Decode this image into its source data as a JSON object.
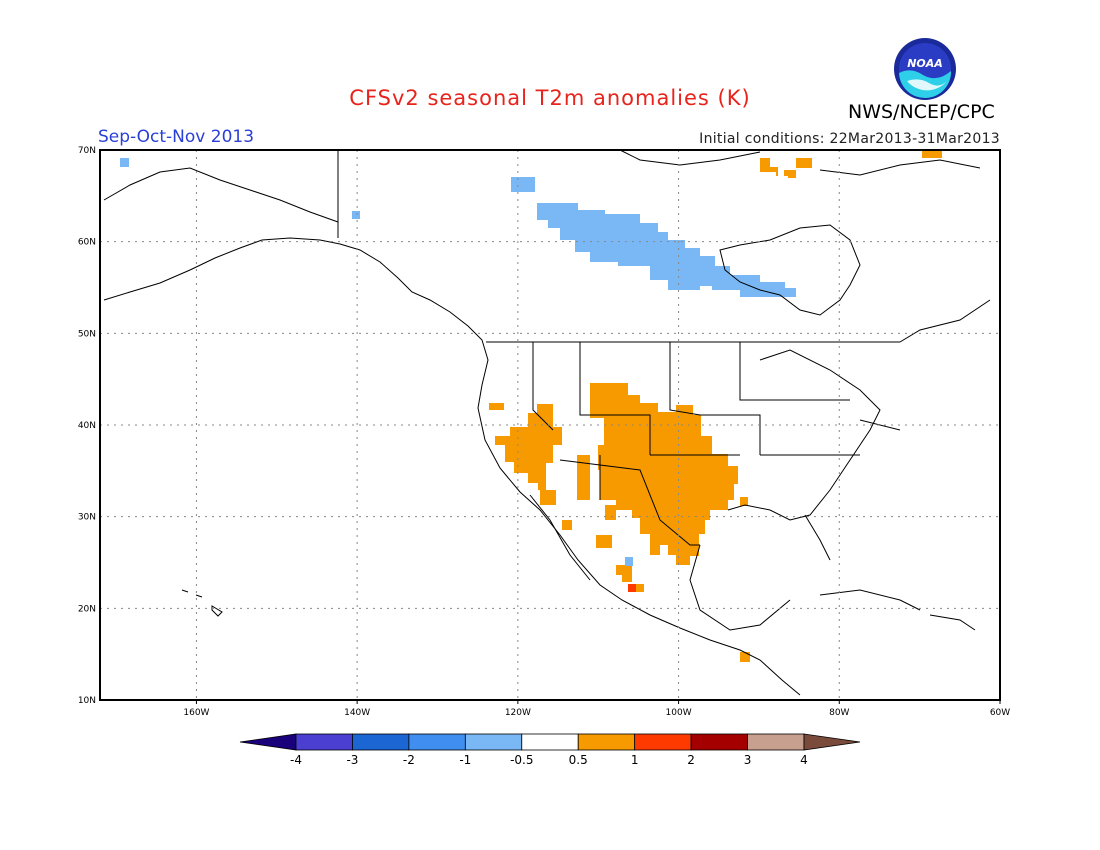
{
  "title": "CFSv2 seasonal T2m anomalies (K)",
  "org": "NWS/NCEP/CPC",
  "period": "Sep-Oct-Nov 2013",
  "initial_conditions": "Initial conditions: 22Mar2013-31Mar2013",
  "logo_text": "NOAA",
  "map": {
    "lon_range": [
      -172,
      -60
    ],
    "lat_range": [
      10,
      70
    ],
    "lon_ticks": [
      {
        "value": -160,
        "label": "160W"
      },
      {
        "value": -140,
        "label": "140W"
      },
      {
        "value": -120,
        "label": "120W"
      },
      {
        "value": -100,
        "label": "100W"
      },
      {
        "value": -80,
        "label": "80W"
      },
      {
        "value": -60,
        "label": "60W"
      }
    ],
    "lat_ticks": [
      {
        "value": 70,
        "label": "70N"
      },
      {
        "value": 60,
        "label": "60N"
      },
      {
        "value": 50,
        "label": "50N"
      },
      {
        "value": 40,
        "label": "40N"
      },
      {
        "value": 30,
        "label": "30N"
      },
      {
        "value": 20,
        "label": "20N"
      },
      {
        "value": 10,
        "label": "10N"
      }
    ],
    "grid": true
  },
  "colorbar": {
    "labels": [
      "-4",
      "-3",
      "-2",
      "-1",
      "-0.5",
      "0.5",
      "1",
      "2",
      "3",
      "4"
    ],
    "colors": [
      "#1a007a",
      "#4a3fd0",
      "#1c66d4",
      "#3f8ef0",
      "#7ab8f5",
      "#ffffff",
      "#f79a00",
      "#ff3a00",
      "#a50000",
      "#c8a090",
      "#7a4a3a"
    ]
  },
  "chart_data": {
    "type": "heatmap",
    "title": "CFSv2 seasonal T2m anomalies (K)",
    "units": "K",
    "regions": [
      {
        "name": "",
        "anomaly_class": "0.5 to 1",
        "lon": [
          -121,
          -111
        ],
        "lat": [
          29,
          38
        ]
      },
      {
        "name": "",
        "anomaly_class": "0.5 to 1",
        "lon": [
          -111,
          -94
        ],
        "lat": [
          27,
          42
        ]
      },
      {
        "name": "",
        "anomaly_class": "0.5 to 1",
        "lon": [
          -110,
          -98
        ],
        "lat": [
          22,
          30
        ]
      },
      {
        "name": "",
        "anomaly_class": "1 to 2",
        "lon": [
          -106,
          -105
        ],
        "lat": [
          21,
          22
        ]
      },
      {
        "name": "",
        "anomaly_class": "-1 to -0.5",
        "lon": [
          -126,
          -90
        ],
        "lat": [
          54,
          64
        ]
      },
      {
        "name": "",
        "anomaly_class": "-1 to -0.5",
        "lon": [
          -118,
          -113
        ],
        "lat": [
          65,
          66
        ]
      },
      {
        "name": "",
        "anomaly_class": "0.5 to 1",
        "lon": [
          -86,
          -81
        ],
        "lat": [
          68,
          70
        ]
      },
      {
        "name": "",
        "anomaly_class": "0.5 to 1",
        "lon": [
          -68,
          -66
        ],
        "lat": [
          69,
          70
        ]
      }
    ]
  }
}
